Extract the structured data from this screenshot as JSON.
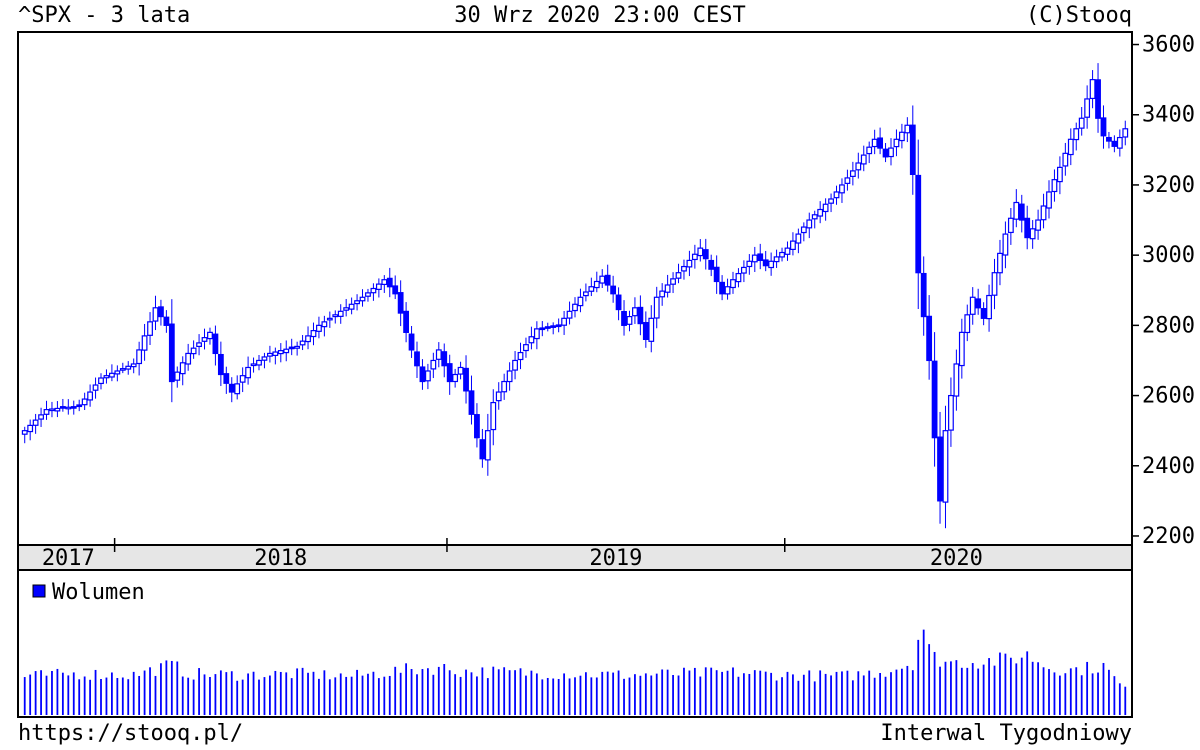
{
  "header": {
    "title": "^SPX - 3 lata",
    "datetime": "30 Wrz 2020 23:00 CEST",
    "copyright": "(C)Stooq"
  },
  "footer": {
    "url": "https://stooq.pl/",
    "interval": "Interwal Tygodniowy"
  },
  "colors": {
    "candle": "#0000ff",
    "background": "#ffffff",
    "year_band": "#e6e6e6",
    "axis": "#000000"
  },
  "chart_data": {
    "type": "candlestick",
    "symbol": "^SPX",
    "interval": "weekly",
    "y_ticks": [
      2200,
      2400,
      2600,
      2800,
      3000,
      3200,
      3400,
      3600
    ],
    "ylim": [
      2180,
      3630
    ],
    "year_labels": [
      "2017",
      "2018",
      "2019",
      "2020"
    ],
    "legend": "Wolumen",
    "volume_scale_max": 10,
    "anchors": [
      [
        0,
        2500
      ],
      [
        4,
        2560
      ],
      [
        10,
        2570
      ],
      [
        14,
        2650
      ],
      [
        20,
        2690
      ],
      [
        24,
        2850
      ],
      [
        26,
        2800
      ],
      [
        27,
        2640
      ],
      [
        30,
        2720
      ],
      [
        34,
        2780
      ],
      [
        36,
        2660
      ],
      [
        38,
        2610
      ],
      [
        41,
        2680
      ],
      [
        45,
        2720
      ],
      [
        50,
        2740
      ],
      [
        54,
        2800
      ],
      [
        58,
        2840
      ],
      [
        62,
        2880
      ],
      [
        66,
        2930
      ],
      [
        68,
        2890
      ],
      [
        70,
        2780
      ],
      [
        71,
        2730
      ],
      [
        73,
        2640
      ],
      [
        76,
        2730
      ],
      [
        78,
        2640
      ],
      [
        80,
        2680
      ],
      [
        83,
        2480
      ],
      [
        84,
        2420
      ],
      [
        86,
        2580
      ],
      [
        90,
        2700
      ],
      [
        94,
        2790
      ],
      [
        98,
        2800
      ],
      [
        102,
        2880
      ],
      [
        106,
        2940
      ],
      [
        108,
        2890
      ],
      [
        110,
        2800
      ],
      [
        112,
        2850
      ],
      [
        114,
        2760
      ],
      [
        116,
        2880
      ],
      [
        120,
        2950
      ],
      [
        124,
        3020
      ],
      [
        126,
        2960
      ],
      [
        128,
        2890
      ],
      [
        130,
        2930
      ],
      [
        134,
        3000
      ],
      [
        136,
        2970
      ],
      [
        140,
        3020
      ],
      [
        144,
        3100
      ],
      [
        148,
        3160
      ],
      [
        152,
        3240
      ],
      [
        156,
        3330
      ],
      [
        158,
        3280
      ],
      [
        160,
        3330
      ],
      [
        162,
        3370
      ],
      [
        163,
        3230
      ],
      [
        164,
        2950
      ],
      [
        166,
        2700
      ],
      [
        167,
        2480
      ],
      [
        168,
        2300
      ],
      [
        169,
        2500
      ],
      [
        170,
        2600
      ],
      [
        172,
        2780
      ],
      [
        174,
        2880
      ],
      [
        176,
        2820
      ],
      [
        178,
        2950
      ],
      [
        180,
        3060
      ],
      [
        182,
        3150
      ],
      [
        184,
        3050
      ],
      [
        186,
        3100
      ],
      [
        188,
        3180
      ],
      [
        190,
        3250
      ],
      [
        192,
        3330
      ],
      [
        194,
        3390
      ],
      [
        196,
        3500
      ],
      [
        197,
        3390
      ],
      [
        198,
        3340
      ],
      [
        200,
        3310
      ],
      [
        202,
        3360
      ]
    ],
    "volume_anchors": [
      [
        0,
        3.1
      ],
      [
        10,
        3.3
      ],
      [
        20,
        3.2
      ],
      [
        27,
        4.0
      ],
      [
        30,
        3.3
      ],
      [
        40,
        3.2
      ],
      [
        50,
        3.3
      ],
      [
        60,
        3.1
      ],
      [
        70,
        3.6
      ],
      [
        76,
        3.8
      ],
      [
        80,
        3.5
      ],
      [
        90,
        3.4
      ],
      [
        100,
        3.3
      ],
      [
        110,
        3.2
      ],
      [
        120,
        3.3
      ],
      [
        130,
        3.4
      ],
      [
        140,
        3.2
      ],
      [
        150,
        3.1
      ],
      [
        158,
        3.5
      ],
      [
        163,
        4.2
      ],
      [
        164,
        6.2
      ],
      [
        165,
        7.0
      ],
      [
        166,
        5.2
      ],
      [
        167,
        4.6
      ],
      [
        170,
        4.2
      ],
      [
        180,
        4.4
      ],
      [
        184,
        4.8
      ],
      [
        188,
        3.8
      ],
      [
        192,
        3.6
      ],
      [
        198,
        3.9
      ],
      [
        202,
        2.0
      ]
    ]
  }
}
